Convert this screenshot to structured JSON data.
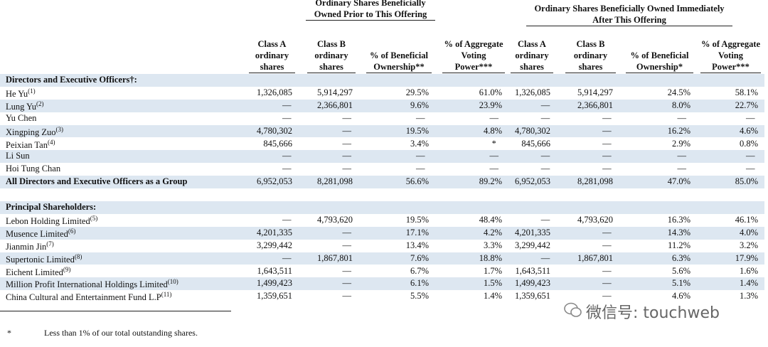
{
  "header": {
    "groups": [
      "Ordinary Shares Beneficially Owned Prior to This Offering",
      "Ordinary Shares Beneficially Owned Immediately After This Offering"
    ],
    "columns": [
      "Class A ordinary shares",
      "Class B ordinary shares",
      "% of Beneficial Ownership**",
      "% of Aggregate Voting Power***",
      "Class A ordinary shares",
      "Class B ordinary shares",
      "% of Beneficial Ownership*",
      "% of Aggregate Voting Power***"
    ]
  },
  "sections": [
    {
      "title": "Directors and Executive Officers†:",
      "rows": [
        {
          "name": "He Yu",
          "note": "(1)",
          "cells": [
            "1,326,085",
            "5,914,297",
            "29.5%",
            "61.0%",
            "1,326,085",
            "5,914,297",
            "24.5%",
            "58.1%"
          ]
        },
        {
          "name": "Lung Yu",
          "note": "(2)",
          "cells": [
            "—",
            "2,366,801",
            "9.6%",
            "23.9%",
            "—",
            "2,366,801",
            "8.0%",
            "22.7%"
          ]
        },
        {
          "name": "Yu Chen",
          "cells": [
            "—",
            "—",
            "—",
            "—",
            "—",
            "—",
            "—",
            "—"
          ]
        },
        {
          "name": "Xingping Zuo",
          "note": "(3)",
          "cells": [
            "4,780,302",
            "—",
            "19.5%",
            "4.8%",
            "4,780,302",
            "—",
            "16.2%",
            "4.6%"
          ]
        },
        {
          "name": "Peixian Tan",
          "note": "(4)",
          "cells": [
            "845,666",
            "—",
            "3.4%",
            "*",
            "845,666",
            "—",
            "2.9%",
            "0.8%"
          ]
        },
        {
          "name": "Li Sun",
          "cells": [
            "—",
            "—",
            "—",
            "—",
            "—",
            "—",
            "—",
            "—"
          ]
        },
        {
          "name": "Hoi Tung Chan",
          "cells": [
            "—",
            "—",
            "—",
            "—",
            "—",
            "—",
            "—",
            "—"
          ]
        },
        {
          "name": "All Directors and Executive Officers as a Group",
          "emphasis": true,
          "cells": [
            "6,952,053",
            "8,281,098",
            "56.6%",
            "89.2%",
            "6,952,053",
            "8,281,098",
            "47.0%",
            "85.0%"
          ]
        }
      ]
    },
    {
      "title": "Principal Shareholders:",
      "rows": [
        {
          "name": "Lebon Holding Limited",
          "note": "(5)",
          "cells": [
            "—",
            "4,793,620",
            "19.5%",
            "48.4%",
            "—",
            "4,793,620",
            "16.3%",
            "46.1%"
          ]
        },
        {
          "name": "Musence Limited",
          "note": "(6)",
          "cells": [
            "4,201,335",
            "—",
            "17.1%",
            "4.2%",
            "4,201,335",
            "—",
            "14.3%",
            "4.0%"
          ]
        },
        {
          "name": "Jianmin Jin",
          "note": "(7)",
          "cells": [
            "3,299,442",
            "—",
            "13.4%",
            "3.3%",
            "3,299,442",
            "—",
            "11.2%",
            "3.2%"
          ]
        },
        {
          "name": "Supertonic Limited",
          "note": "(8)",
          "cells": [
            "—",
            "1,867,801",
            "7.6%",
            "18.8%",
            "—",
            "1,867,801",
            "6.3%",
            "17.9%"
          ]
        },
        {
          "name": "Eichent Limited",
          "note": "(9)",
          "cells": [
            "1,643,511",
            "—",
            "6.7%",
            "1.7%",
            "1,643,511",
            "—",
            "5.6%",
            "1.6%"
          ]
        },
        {
          "name": "Million Profit International Holdings Limited",
          "note": "(10)",
          "cells": [
            "1,499,423",
            "—",
            "6.1%",
            "1.5%",
            "1,499,423",
            "—",
            "5.1%",
            "1.4%"
          ]
        },
        {
          "name": "China Cultural and Entertainment Fund L.P",
          "note": "(11)",
          "cells": [
            "1,359,651",
            "—",
            "5.5%",
            "1.4%",
            "1,359,651",
            "—",
            "4.6%",
            "1.3%"
          ]
        }
      ]
    }
  ],
  "footnotes": [
    {
      "mark": "*",
      "text": "Less than 1% of our total outstanding shares."
    }
  ],
  "watermark": "微信号: touchweb"
}
